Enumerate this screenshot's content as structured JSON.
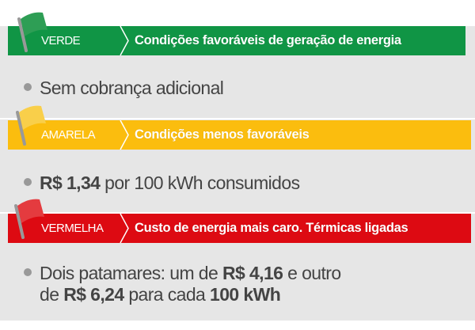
{
  "flags": [
    {
      "name": "VERDE",
      "title": "Condições favoráveis de geração de energia",
      "color": "#109545",
      "flag_color": "#2e9e55",
      "icon": "flag-icon"
    },
    {
      "name": "AMARELA",
      "title": "Condições menos favoráveis",
      "color": "#fbbd0e",
      "flag_color": "#f9cf4a",
      "icon": "flag-icon"
    },
    {
      "name": "VERMELHA",
      "title": "Custo de energia mais caro. Térmicas ligadas",
      "color": "#dd0a12",
      "flag_color": "#e43b3f",
      "icon": "flag-icon"
    }
  ],
  "verde_desc": "Sem cobrança adicional",
  "amarela_desc": {
    "value": "R$ 1,34",
    "rest": " por 100 kWh consumidos"
  },
  "vermelha_desc": {
    "part1": "Dois patamares: um de ",
    "value1": "R$ 4,16",
    "part2": " e outro",
    "part3": "de ",
    "value2": "R$ 6,24",
    "part4": " para cada ",
    "value3": "100 kWh"
  }
}
